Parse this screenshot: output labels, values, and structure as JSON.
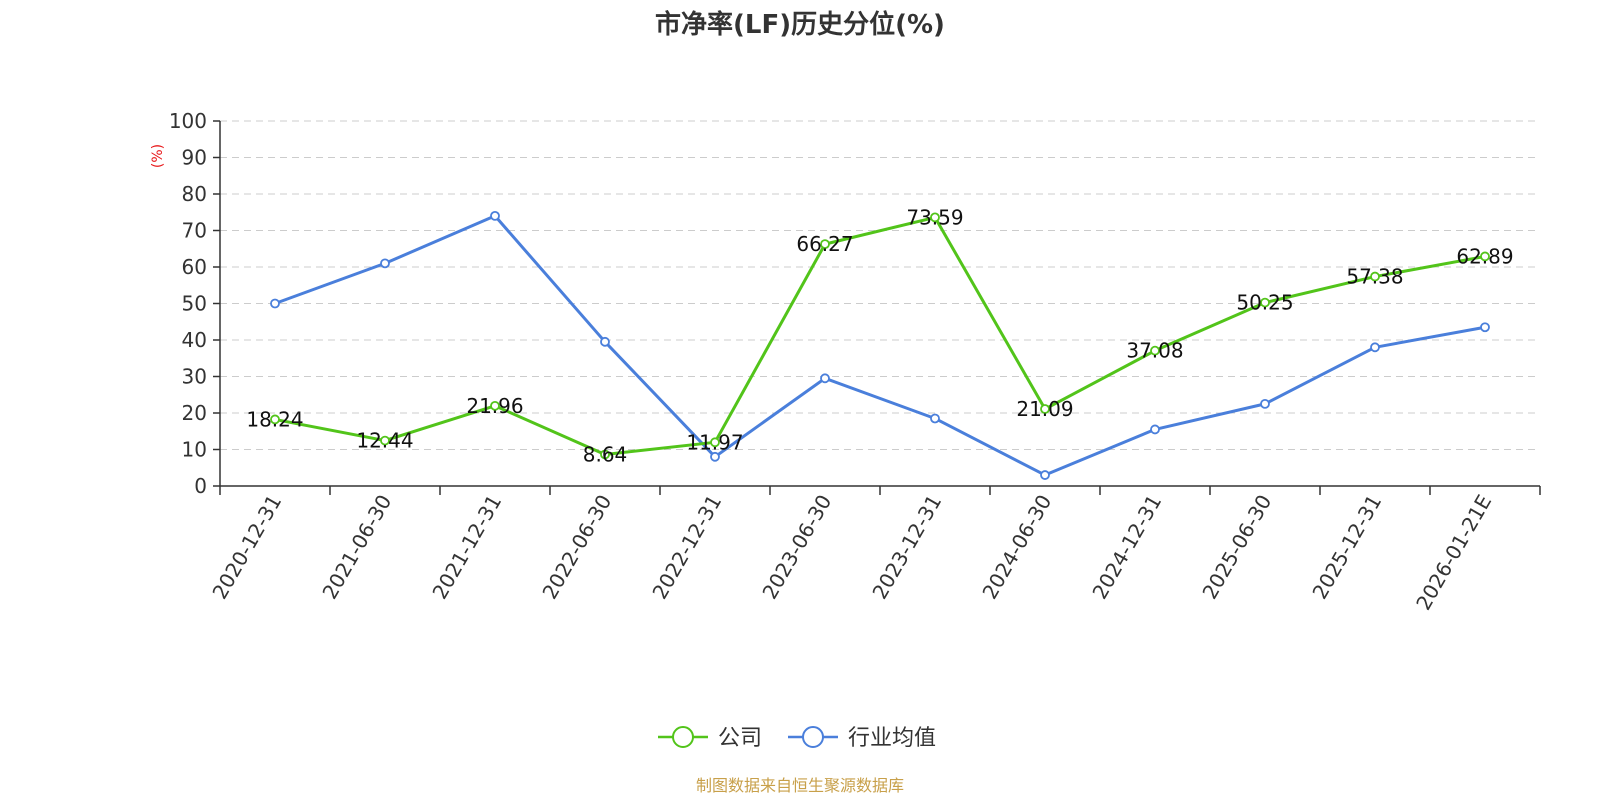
{
  "title": "市净率(LF)历史分位(%)",
  "source": "制图数据来自恒生聚源数据库",
  "colors": {
    "company": "#52c41a",
    "industry": "#4a7fdb",
    "ylabel": "#e8191b",
    "source": "#c8a04a",
    "grid": "#cccccc",
    "axis": "#333333"
  },
  "chart_data": {
    "type": "line",
    "title": "市净率(LF)历史分位(%)",
    "ylabel": "(%)",
    "xlabel": "",
    "ylim": [
      0,
      100
    ],
    "yticks": [
      0,
      10,
      20,
      30,
      40,
      50,
      60,
      70,
      80,
      90,
      100
    ],
    "grid": true,
    "legend_position": "bottom-center",
    "categories": [
      "2020-12-31",
      "2021-06-30",
      "2021-12-31",
      "2022-06-30",
      "2022-12-31",
      "2023-06-30",
      "2023-12-31",
      "2024-06-30",
      "2024-12-31",
      "2025-06-30",
      "2025-12-31",
      "2026-01-21E"
    ],
    "series": [
      {
        "name": "公司",
        "color": "#52c41a",
        "labeled": true,
        "values": [
          18.24,
          12.44,
          21.96,
          8.64,
          11.97,
          66.27,
          73.59,
          21.09,
          37.08,
          50.25,
          57.38,
          62.89
        ]
      },
      {
        "name": "行业均值",
        "color": "#4a7fdb",
        "labeled": false,
        "values": [
          50,
          61,
          74,
          39.5,
          8,
          29.5,
          18.5,
          3,
          15.5,
          22.5,
          38,
          43.5
        ]
      }
    ]
  }
}
